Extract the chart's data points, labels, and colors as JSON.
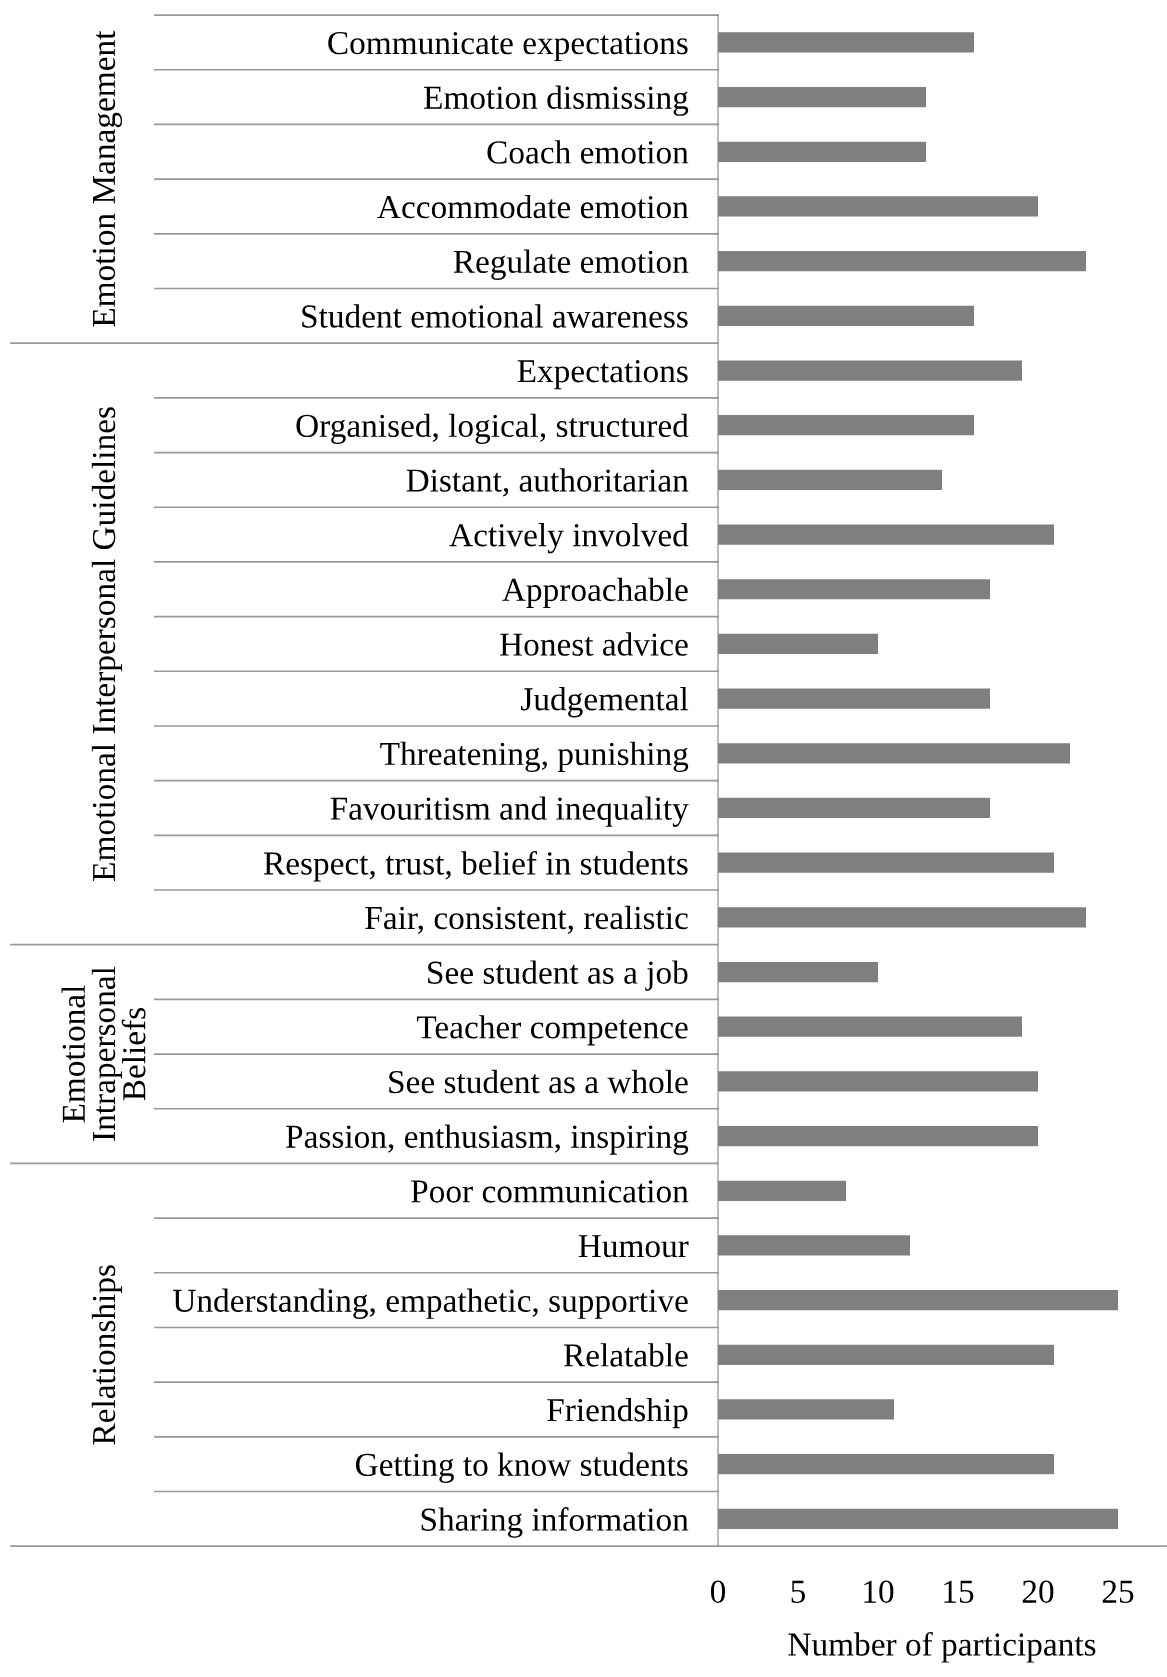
{
  "chart_data": [
    {
      "type": "bar",
      "orientation": "horizontal",
      "ylabel": "Emotion Management",
      "tick_labels": "y",
      "categories": [
        "Communicate expectations",
        "Emotion dismissing",
        "Coach emotion",
        "Accommodate emotion",
        "Regulate emotion",
        "Student emotional awareness"
      ],
      "values": [
        16,
        13,
        13,
        20,
        23,
        16
      ],
      "color": "#7f7f80",
      "xlim": [
        0,
        28
      ],
      "grid": false
    },
    {
      "type": "bar",
      "orientation": "horizontal",
      "ylabel": "Emotional Interpersonal Guidelines",
      "tick_labels": "y",
      "categories": [
        "Expectations",
        "Organised, logical, structured",
        "Distant, authoritarian",
        "Actively involved",
        "Approachable",
        "Honest advice",
        "Judgemental",
        "Threatening, punishing",
        "Favouritism and inequality",
        "Respect, trust, belief in students",
        "Fair, consistent, realistic"
      ],
      "values": [
        19,
        16,
        14,
        21,
        17,
        10,
        17,
        22,
        17,
        21,
        23
      ],
      "color": "#7f7f80",
      "xlim": [
        0,
        28
      ],
      "grid": false
    },
    {
      "type": "bar",
      "orientation": "horizontal",
      "ylabel": "Emotional\nIntrapersonal\nBeliefs",
      "tick_labels": "y",
      "categories": [
        "See student as a job",
        "Teacher competence",
        "See student as a whole",
        "Passion, enthusiasm, inspiring"
      ],
      "values": [
        10,
        19,
        20,
        20
      ],
      "color": "#7f7f80",
      "xlim": [
        0,
        28
      ],
      "grid": false
    },
    {
      "type": "bar",
      "orientation": "horizontal",
      "ylabel": "Relationships",
      "xlabel": "Number of participants",
      "categories": [
        "Poor communication",
        "Humour",
        "Understanding, empathetic, supportive",
        "Relatable",
        "Friendship",
        "Getting to know students",
        "Sharing information"
      ],
      "values": [
        8,
        12,
        25,
        21,
        11,
        21,
        25
      ],
      "color": "#7f7f80",
      "xlim": [
        0,
        28
      ],
      "xticks": [
        0,
        5,
        10,
        15,
        20,
        25
      ],
      "grid": false
    }
  ]
}
